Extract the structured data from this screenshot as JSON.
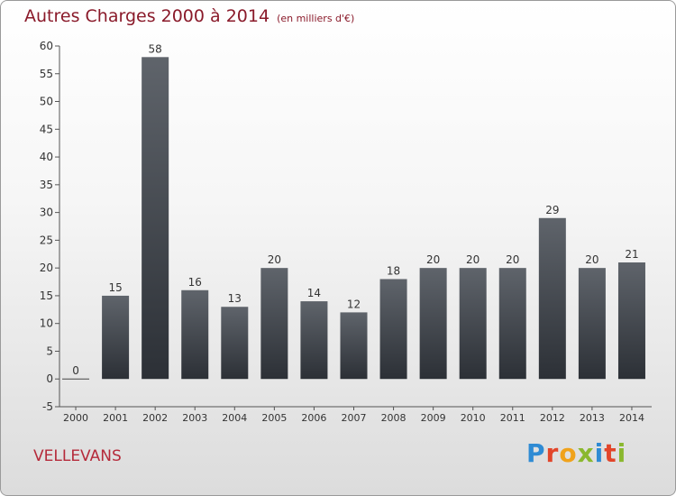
{
  "title": "Autres Charges 2000 à 2014",
  "subtitle": "(en milliers d'€)",
  "commune": "VELLEVANS",
  "logo": {
    "text": "Proxiti",
    "colors": [
      "#2f8bd4",
      "#e2452a",
      "#f0a21b",
      "#8ab82e",
      "#2f8bd4",
      "#e2452a",
      "#8ab82e"
    ]
  },
  "chart_data": {
    "type": "bar",
    "categories": [
      "2000",
      "2001",
      "2002",
      "2003",
      "2004",
      "2005",
      "2006",
      "2007",
      "2008",
      "2009",
      "2010",
      "2011",
      "2012",
      "2013",
      "2014"
    ],
    "values": [
      0,
      15,
      58,
      16,
      13,
      20,
      14,
      12,
      18,
      20,
      20,
      20,
      29,
      20,
      21
    ],
    "ylim": [
      -5,
      60
    ],
    "yticks": [
      -5,
      0,
      5,
      10,
      15,
      20,
      25,
      30,
      35,
      40,
      45,
      50,
      55,
      60
    ],
    "grid": false,
    "data_labels": true,
    "bar_color_top": "#5f646b",
    "bar_color_bottom": "#2c3036"
  }
}
